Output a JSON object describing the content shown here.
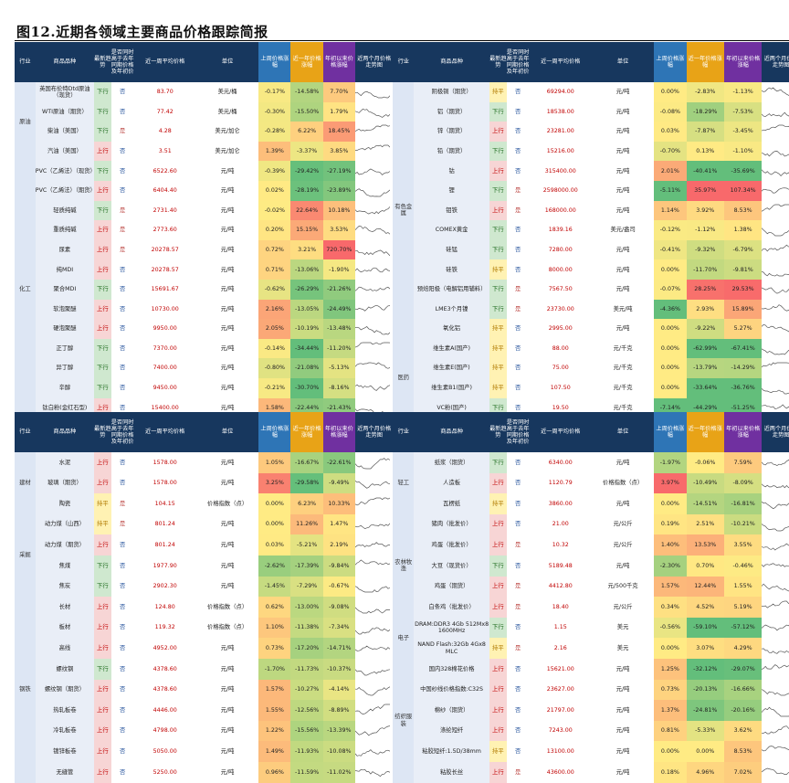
{
  "title": "图12.近期各领域主要商品价格跟踪简报",
  "headers": [
    "行业",
    "商品品种",
    "最新趋势",
    "是否同时高于去年同期价格及年初价",
    "近一周平均价格",
    "单位",
    "上周价格涨幅",
    "近一年价格涨幅",
    "年初以来价格涨幅",
    "近两个月价格走势图"
  ],
  "colors": {
    "up": "#c00000",
    "down": "#1e6b1e",
    "flat": "#b07a00",
    "hi": "#f8696b",
    "lo": "#63be7b",
    "mid": "#ffeb84"
  },
  "t1_left": [
    {
      "ind": "原油",
      "name": "英国布伦特Dtd原油（现货）",
      "trend": "下行",
      "flag": "否",
      "price": "83.70",
      "unit": "美元/桶",
      "w": "-0.17%",
      "y": "-14.58%",
      "ytd": "7.70%"
    },
    {
      "ind": "",
      "name": "WTI原油（期货）",
      "trend": "下行",
      "flag": "否",
      "price": "77.42",
      "unit": "美元/桶",
      "w": "-0.30%",
      "y": "-15.50%",
      "ytd": "1.79%"
    },
    {
      "ind": "",
      "name": "柴油（美国）",
      "trend": "下行",
      "flag": "是",
      "price": "4.28",
      "unit": "美元/加仑",
      "w": "-0.28%",
      "y": "6.22%",
      "ytd": "18.45%"
    },
    {
      "ind": "",
      "name": "汽油（美国）",
      "trend": "上行",
      "flag": "否",
      "price": "3.51",
      "unit": "美元/加仑",
      "w": "1.39%",
      "y": "-3.37%",
      "ytd": "3.85%"
    },
    {
      "ind": "化工",
      "name": "PVC（乙烯法）（现货）",
      "trend": "下行",
      "flag": "否",
      "price": "6522.60",
      "unit": "元/吨",
      "w": "-0.39%",
      "y": "-29.42%",
      "ytd": "-27.19%"
    },
    {
      "ind": "",
      "name": "PVC（乙烯法）（期货）",
      "trend": "上行",
      "flag": "否",
      "price": "6404.40",
      "unit": "元/吨",
      "w": "0.02%",
      "y": "-28.19%",
      "ytd": "-23.89%"
    },
    {
      "ind": "",
      "name": "轻质纯碱",
      "trend": "下行",
      "flag": "是",
      "price": "2731.40",
      "unit": "元/吨",
      "w": "-0.02%",
      "y": "22.64%",
      "ytd": "10.18%"
    },
    {
      "ind": "",
      "name": "重质纯碱",
      "trend": "上行",
      "flag": "是",
      "price": "2773.60",
      "unit": "元/吨",
      "w": "0.20%",
      "y": "15.15%",
      "ytd": "3.53%"
    },
    {
      "ind": "",
      "name": "尿素",
      "trend": "上行",
      "flag": "是",
      "price": "20278.57",
      "unit": "元/吨",
      "w": "0.72%",
      "y": "3.21%",
      "ytd": "720.70%"
    },
    {
      "ind": "",
      "name": "纯MDI",
      "trend": "上行",
      "flag": "否",
      "price": "20278.57",
      "unit": "元/吨",
      "w": "0.71%",
      "y": "-13.06%",
      "ytd": "-1.90%"
    },
    {
      "ind": "",
      "name": "聚合MDI",
      "trend": "下行",
      "flag": "否",
      "price": "15691.67",
      "unit": "元/吨",
      "w": "-0.62%",
      "y": "-26.29%",
      "ytd": "-21.26%"
    },
    {
      "ind": "",
      "name": "软泡聚醚",
      "trend": "上行",
      "flag": "否",
      "price": "10730.00",
      "unit": "元/吨",
      "w": "2.16%",
      "y": "-13.05%",
      "ytd": "-24.49%"
    },
    {
      "ind": "",
      "name": "硬泡聚醚",
      "trend": "上行",
      "flag": "否",
      "price": "9950.00",
      "unit": "元/吨",
      "w": "2.05%",
      "y": "-10.19%",
      "ytd": "-13.48%"
    },
    {
      "ind": "",
      "name": "正丁醇",
      "trend": "下行",
      "flag": "否",
      "price": "7370.00",
      "unit": "元/吨",
      "w": "-0.14%",
      "y": "-34.44%",
      "ytd": "-11.20%"
    },
    {
      "ind": "",
      "name": "异丁醇",
      "trend": "下行",
      "flag": "否",
      "price": "7400.00",
      "unit": "元/吨",
      "w": "-0.80%",
      "y": "-21.08%",
      "ytd": "-5.13%"
    },
    {
      "ind": "",
      "name": "辛醇",
      "trend": "下行",
      "flag": "否",
      "price": "9450.00",
      "unit": "元/吨",
      "w": "-0.21%",
      "y": "-30.70%",
      "ytd": "-8.16%"
    },
    {
      "ind": "",
      "name": "钛白粉(金红石型)",
      "trend": "上行",
      "flag": "否",
      "price": "15400.00",
      "unit": "元/吨",
      "w": "1.58%",
      "y": "-22.44%",
      "ytd": "-21.43%"
    }
  ],
  "t1_right": [
    {
      "ind": "有色金属",
      "name": "阴极铜（期货）",
      "trend": "持平",
      "flag": "否",
      "price": "69294.00",
      "unit": "元/吨",
      "w": "0.00%",
      "y": "-2.83%",
      "ytd": "-1.13%"
    },
    {
      "ind": "",
      "name": "铝（期货）",
      "trend": "下行",
      "flag": "否",
      "price": "18538.00",
      "unit": "元/吨",
      "w": "-0.08%",
      "y": "-18.29%",
      "ytd": "-7.53%"
    },
    {
      "ind": "",
      "name": "锌（期货）",
      "trend": "上行",
      "flag": "否",
      "price": "23281.00",
      "unit": "元/吨",
      "w": "0.03%",
      "y": "-7.87%",
      "ytd": "-3.45%"
    },
    {
      "ind": "",
      "name": "铅（期货）",
      "trend": "下行",
      "flag": "否",
      "price": "15216.00",
      "unit": "元/吨",
      "w": "-0.70%",
      "y": "0.13%",
      "ytd": "-1.10%"
    },
    {
      "ind": "",
      "name": "钴",
      "trend": "上行",
      "flag": "否",
      "price": "315400.00",
      "unit": "元/吨",
      "w": "2.01%",
      "y": "-40.41%",
      "ytd": "-35.69%"
    },
    {
      "ind": "",
      "name": "锂",
      "trend": "下行",
      "flag": "是",
      "price": "2598000.00",
      "unit": "元/吨",
      "w": "-5.11%",
      "y": "35.97%",
      "ytd": "107.34%"
    },
    {
      "ind": "",
      "name": "钼铁",
      "trend": "上行",
      "flag": "是",
      "price": "168000.00",
      "unit": "元/吨",
      "w": "1.14%",
      "y": "3.92%",
      "ytd": "8.53%"
    },
    {
      "ind": "",
      "name": "COMEX黄金",
      "trend": "下行",
      "flag": "否",
      "price": "1839.16",
      "unit": "美元/盎司",
      "w": "-0.12%",
      "y": "-1.12%",
      "ytd": "1.38%"
    },
    {
      "ind": "",
      "name": "硅锰",
      "trend": "下行",
      "flag": "否",
      "price": "7280.00",
      "unit": "元/吨",
      "w": "-0.41%",
      "y": "-9.32%",
      "ytd": "-6.79%"
    },
    {
      "ind": "",
      "name": "硅铁",
      "trend": "持平",
      "flag": "否",
      "price": "8000.00",
      "unit": "元/吨",
      "w": "0.00%",
      "y": "-11.70%",
      "ytd": "-9.81%"
    },
    {
      "ind": "",
      "name": "预焙阳极（电解铝用辅料）",
      "trend": "下行",
      "flag": "是",
      "price": "7567.50",
      "unit": "元/吨",
      "w": "-0.07%",
      "y": "28.25%",
      "ytd": "29.53%"
    },
    {
      "ind": "",
      "name": "LME3个月镍",
      "trend": "下行",
      "flag": "是",
      "price": "23730.00",
      "unit": "美元/吨",
      "w": "-4.36%",
      "y": "2.93%",
      "ytd": "15.89%"
    },
    {
      "ind": "",
      "name": "氧化铝",
      "trend": "持平",
      "flag": "否",
      "price": "2995.00",
      "unit": "元/吨",
      "w": "0.00%",
      "y": "-9.22%",
      "ytd": "5.27%"
    },
    {
      "ind": "医药",
      "name": "维生素A(国产)",
      "trend": "持平",
      "flag": "否",
      "price": "88.00",
      "unit": "元/千克",
      "w": "0.00%",
      "y": "-62.99%",
      "ytd": "-67.41%"
    },
    {
      "ind": "",
      "name": "维生素E(国产)",
      "trend": "持平",
      "flag": "否",
      "price": "75.00",
      "unit": "元/千克",
      "w": "0.00%",
      "y": "-13.79%",
      "ytd": "-14.29%"
    },
    {
      "ind": "",
      "name": "维生素B1(国产)",
      "trend": "持平",
      "flag": "否",
      "price": "107.50",
      "unit": "元/千克",
      "w": "0.00%",
      "y": "-33.64%",
      "ytd": "-36.76%"
    },
    {
      "ind": "",
      "name": "VC粉(国产)",
      "trend": "下行",
      "flag": "否",
      "price": "19.50",
      "unit": "元/千克",
      "w": "-7.14%",
      "y": "-44.29%",
      "ytd": "-51.25%"
    }
  ],
  "t2_left": [
    {
      "ind": "建材",
      "name": "水泥",
      "trend": "上行",
      "flag": "否",
      "price": "1578.00",
      "unit": "元/吨",
      "w": "1.05%",
      "y": "-16.67%",
      "ytd": "-22.61%"
    },
    {
      "ind": "",
      "name": "玻璃（期货）",
      "trend": "上行",
      "flag": "否",
      "price": "1578.00",
      "unit": "元/吨",
      "w": "3.25%",
      "y": "-29.58%",
      "ytd": "-9.49%"
    },
    {
      "ind": "",
      "name": "陶瓷",
      "trend": "持平",
      "flag": "是",
      "price": "104.15",
      "unit": "价格指数（点）",
      "w": "0.00%",
      "y": "6.23%",
      "ytd": "10.33%"
    },
    {
      "ind": "采掘",
      "name": "动力煤（山西）",
      "trend": "持平",
      "flag": "是",
      "price": "801.24",
      "unit": "元/吨",
      "w": "0.00%",
      "y": "11.26%",
      "ytd": "1.47%"
    },
    {
      "ind": "",
      "name": "动力煤（期货）",
      "trend": "上行",
      "flag": "否",
      "price": "801.24",
      "unit": "元/吨",
      "w": "0.03%",
      "y": "-5.21%",
      "ytd": "2.19%"
    },
    {
      "ind": "",
      "name": "焦煤",
      "trend": "下行",
      "flag": "否",
      "price": "1977.90",
      "unit": "元/吨",
      "w": "-2.62%",
      "y": "-17.39%",
      "ytd": "-9.84%"
    },
    {
      "ind": "",
      "name": "焦炭",
      "trend": "下行",
      "flag": "否",
      "price": "2902.30",
      "unit": "元/吨",
      "w": "-1.45%",
      "y": "-7.29%",
      "ytd": "-0.67%"
    },
    {
      "ind": "钢铁",
      "name": "长材",
      "trend": "上行",
      "flag": "否",
      "price": "124.80",
      "unit": "价格指数（点）",
      "w": "0.62%",
      "y": "-13.00%",
      "ytd": "-9.08%"
    },
    {
      "ind": "",
      "name": "板材",
      "trend": "上行",
      "flag": "否",
      "price": "119.32",
      "unit": "价格指数（点）",
      "w": "1.10%",
      "y": "-11.38%",
      "ytd": "-7.34%"
    },
    {
      "ind": "",
      "name": "高线",
      "trend": "上行",
      "flag": "否",
      "price": "4952.00",
      "unit": "元/吨",
      "w": "0.73%",
      "y": "-17.20%",
      "ytd": "-14.71%"
    },
    {
      "ind": "",
      "name": "螺纹钢",
      "trend": "下行",
      "flag": "否",
      "price": "4378.60",
      "unit": "元/吨",
      "w": "-1.70%",
      "y": "-11.73%",
      "ytd": "-10.37%"
    },
    {
      "ind": "",
      "name": "螺纹钢（期货）",
      "trend": "上行",
      "flag": "否",
      "price": "4378.60",
      "unit": "元/吨",
      "w": "1.57%",
      "y": "-10.27%",
      "ytd": "-4.14%"
    },
    {
      "ind": "",
      "name": "热轧板卷",
      "trend": "上行",
      "flag": "否",
      "price": "4446.00",
      "unit": "元/吨",
      "w": "1.55%",
      "y": "-12.56%",
      "ytd": "-8.89%"
    },
    {
      "ind": "",
      "name": "冷轧板卷",
      "trend": "上行",
      "flag": "否",
      "price": "4798.00",
      "unit": "元/吨",
      "w": "1.22%",
      "y": "-15.56%",
      "ytd": "-13.39%"
    },
    {
      "ind": "",
      "name": "镀锌板卷",
      "trend": "上行",
      "flag": "否",
      "price": "5050.00",
      "unit": "元/吨",
      "w": "1.49%",
      "y": "-11.93%",
      "ytd": "-10.08%"
    },
    {
      "ind": "",
      "name": "无缝管",
      "trend": "上行",
      "flag": "否",
      "price": "5250.00",
      "unit": "元/吨",
      "w": "0.96%",
      "y": "-11.59%",
      "ytd": "-11.02%"
    }
  ],
  "t2_right": [
    {
      "ind": "轻工",
      "name": "纸浆（期货）",
      "trend": "下行",
      "flag": "否",
      "price": "6340.00",
      "unit": "元/吨",
      "w": "-1.97%",
      "y": "-0.06%",
      "ytd": "7.59%"
    },
    {
      "ind": "",
      "name": "人造板",
      "trend": "上行",
      "flag": "否",
      "price": "1120.79",
      "unit": "价格指数（点）",
      "w": "3.97%",
      "y": "-10.49%",
      "ytd": "-8.09%"
    },
    {
      "ind": "",
      "name": "瓦楞纸",
      "trend": "持平",
      "flag": "否",
      "price": "3860.00",
      "unit": "元/吨",
      "w": "0.00%",
      "y": "-14.51%",
      "ytd": "-16.81%"
    },
    {
      "ind": "农林牧渔",
      "name": "猪肉（批发价）",
      "trend": "上行",
      "flag": "否",
      "price": "21.00",
      "unit": "元/公斤",
      "w": "0.19%",
      "y": "2.51%",
      "ytd": "-10.21%"
    },
    {
      "ind": "",
      "name": "鸡蛋（批发价）",
      "trend": "上行",
      "flag": "是",
      "price": "10.32",
      "unit": "元/公斤",
      "w": "1.40%",
      "y": "13.53%",
      "ytd": "3.55%"
    },
    {
      "ind": "",
      "name": "大豆（现货价）",
      "trend": "下行",
      "flag": "否",
      "price": "5189.48",
      "unit": "元/吨",
      "w": "-2.30%",
      "y": "0.70%",
      "ytd": "-0.46%"
    },
    {
      "ind": "",
      "name": "鸡蛋（期货）",
      "trend": "上行",
      "flag": "是",
      "price": "4412.80",
      "unit": "元/500千克",
      "w": "1.57%",
      "y": "12.44%",
      "ytd": "1.55%"
    },
    {
      "ind": "",
      "name": "白条鸡（批发价）",
      "trend": "上行",
      "flag": "是",
      "price": "18.40",
      "unit": "元/公斤",
      "w": "0.34%",
      "y": "4.52%",
      "ytd": "5.19%"
    },
    {
      "ind": "电子",
      "name": "DRAM:DDR3 4Gb 512Mx8 1600MHz",
      "trend": "下行",
      "flag": "否",
      "price": "1.15",
      "unit": "美元",
      "w": "-0.56%",
      "y": "-59.10%",
      "ytd": "-57.12%"
    },
    {
      "ind": "",
      "name": "NAND Flash:32Gb 4Gx8 MLC",
      "trend": "持平",
      "flag": "是",
      "price": "2.16",
      "unit": "美元",
      "w": "0.00%",
      "y": "3.07%",
      "ytd": "4.29%"
    },
    {
      "ind": "纺织服装",
      "name": "国内328棉花价格",
      "trend": "上行",
      "flag": "否",
      "price": "15621.00",
      "unit": "元/吨",
      "w": "1.25%",
      "y": "-32.12%",
      "ytd": "-29.07%"
    },
    {
      "ind": "",
      "name": "中国纱线价格指数:C32S",
      "trend": "上行",
      "flag": "否",
      "price": "23627.00",
      "unit": "元/吨",
      "w": "0.73%",
      "y": "-20.13%",
      "ytd": "-16.66%"
    },
    {
      "ind": "",
      "name": "棉纱（期货）",
      "trend": "上行",
      "flag": "否",
      "price": "21797.00",
      "unit": "元/吨",
      "w": "1.37%",
      "y": "-24.81%",
      "ytd": "-20.16%"
    },
    {
      "ind": "",
      "name": "涤纶短纤",
      "trend": "上行",
      "flag": "否",
      "price": "7243.00",
      "unit": "元/吨",
      "w": "0.81%",
      "y": "-5.33%",
      "ytd": "3.62%"
    },
    {
      "ind": "",
      "name": "粘胶短纤:1.5D/38mm",
      "trend": "持平",
      "flag": "否",
      "price": "13100.00",
      "unit": "元/吨",
      "w": "0.00%",
      "y": "0.00%",
      "ytd": "8.53%"
    },
    {
      "ind": "",
      "name": "粘胶长丝",
      "trend": "上行",
      "flag": "是",
      "price": "43600.00",
      "unit": "元/吨",
      "w": "0.18%",
      "y": "4.96%",
      "ytd": "7.02%"
    }
  ]
}
